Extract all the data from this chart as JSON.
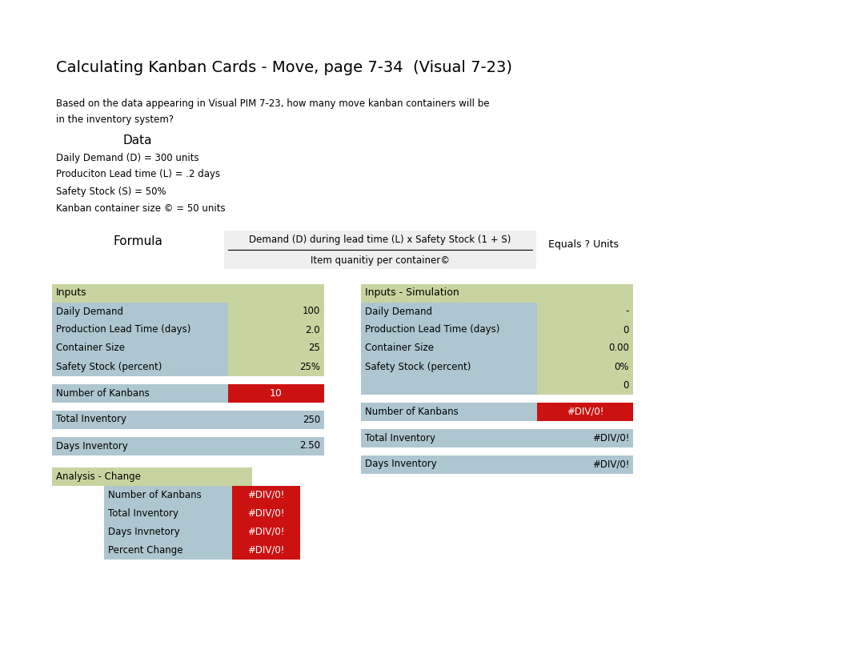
{
  "title": "Calculating Kanban Cards - Move, page 7-34  (Visual 7-23)",
  "subtitle_line1": "Based on the data appearing in Visual PIM 7-23, how many move kanban containers will be",
  "subtitle_line2": "in the inventory system?",
  "data_label": "Data",
  "data_items": [
    "Daily Demand (D) = 300 units",
    "Produciton Lead time (L) = .2 days",
    "Safety Stock (S) = 50%",
    "Kanban container size © = 50 units"
  ],
  "formula_label": "Formula",
  "formula_numerator": "Demand (D) during lead time (L) x Safety Stock (1 + S)",
  "formula_denominator": "Item quanitiy per container©",
  "formula_result": "Equals ? Units",
  "left_table_header": "Inputs",
  "left_rows": [
    [
      "Daily Demand",
      "100"
    ],
    [
      "Production Lead Time (days)",
      "2.0"
    ],
    [
      "Container Size",
      "25"
    ],
    [
      "Safety Stock (percent)",
      "25%"
    ]
  ],
  "left_kanban": [
    "Number of Kanbans",
    "10"
  ],
  "left_total": [
    "Total Inventory",
    "250"
  ],
  "left_days": [
    "Days Inventory",
    "2.50"
  ],
  "right_table_header": "Inputs - Simulation",
  "right_rows": [
    [
      "Daily Demand",
      "-"
    ],
    [
      "Production Lead Time (days)",
      "0"
    ],
    [
      "Container Size",
      "0.00"
    ],
    [
      "Safety Stock (percent)",
      "0%"
    ]
  ],
  "right_extra": "0",
  "right_kanban": [
    "Number of Kanbans",
    "#DIV/0!"
  ],
  "right_total": [
    "Total Inventory",
    "#DIV/0!"
  ],
  "right_days": [
    "Days Inventory",
    "#DIV/0!"
  ],
  "analysis_header": "Analysis - Change",
  "analysis_rows": [
    [
      "Number of Kanbans",
      "#DIV/0!"
    ],
    [
      "Total Inventory",
      "#DIV/0!"
    ],
    [
      "Days Invnetory",
      "#DIV/0!"
    ],
    [
      "Percent Change",
      "#DIV/0!"
    ]
  ],
  "color_header_olive": "#c8d4a0",
  "color_blue_light": "#aec6cf",
  "color_green_light": "#c8d4a0",
  "color_red_bright": "#cc1111",
  "color_bg": "#ffffff",
  "color_formula_box": "#d9d9d9"
}
